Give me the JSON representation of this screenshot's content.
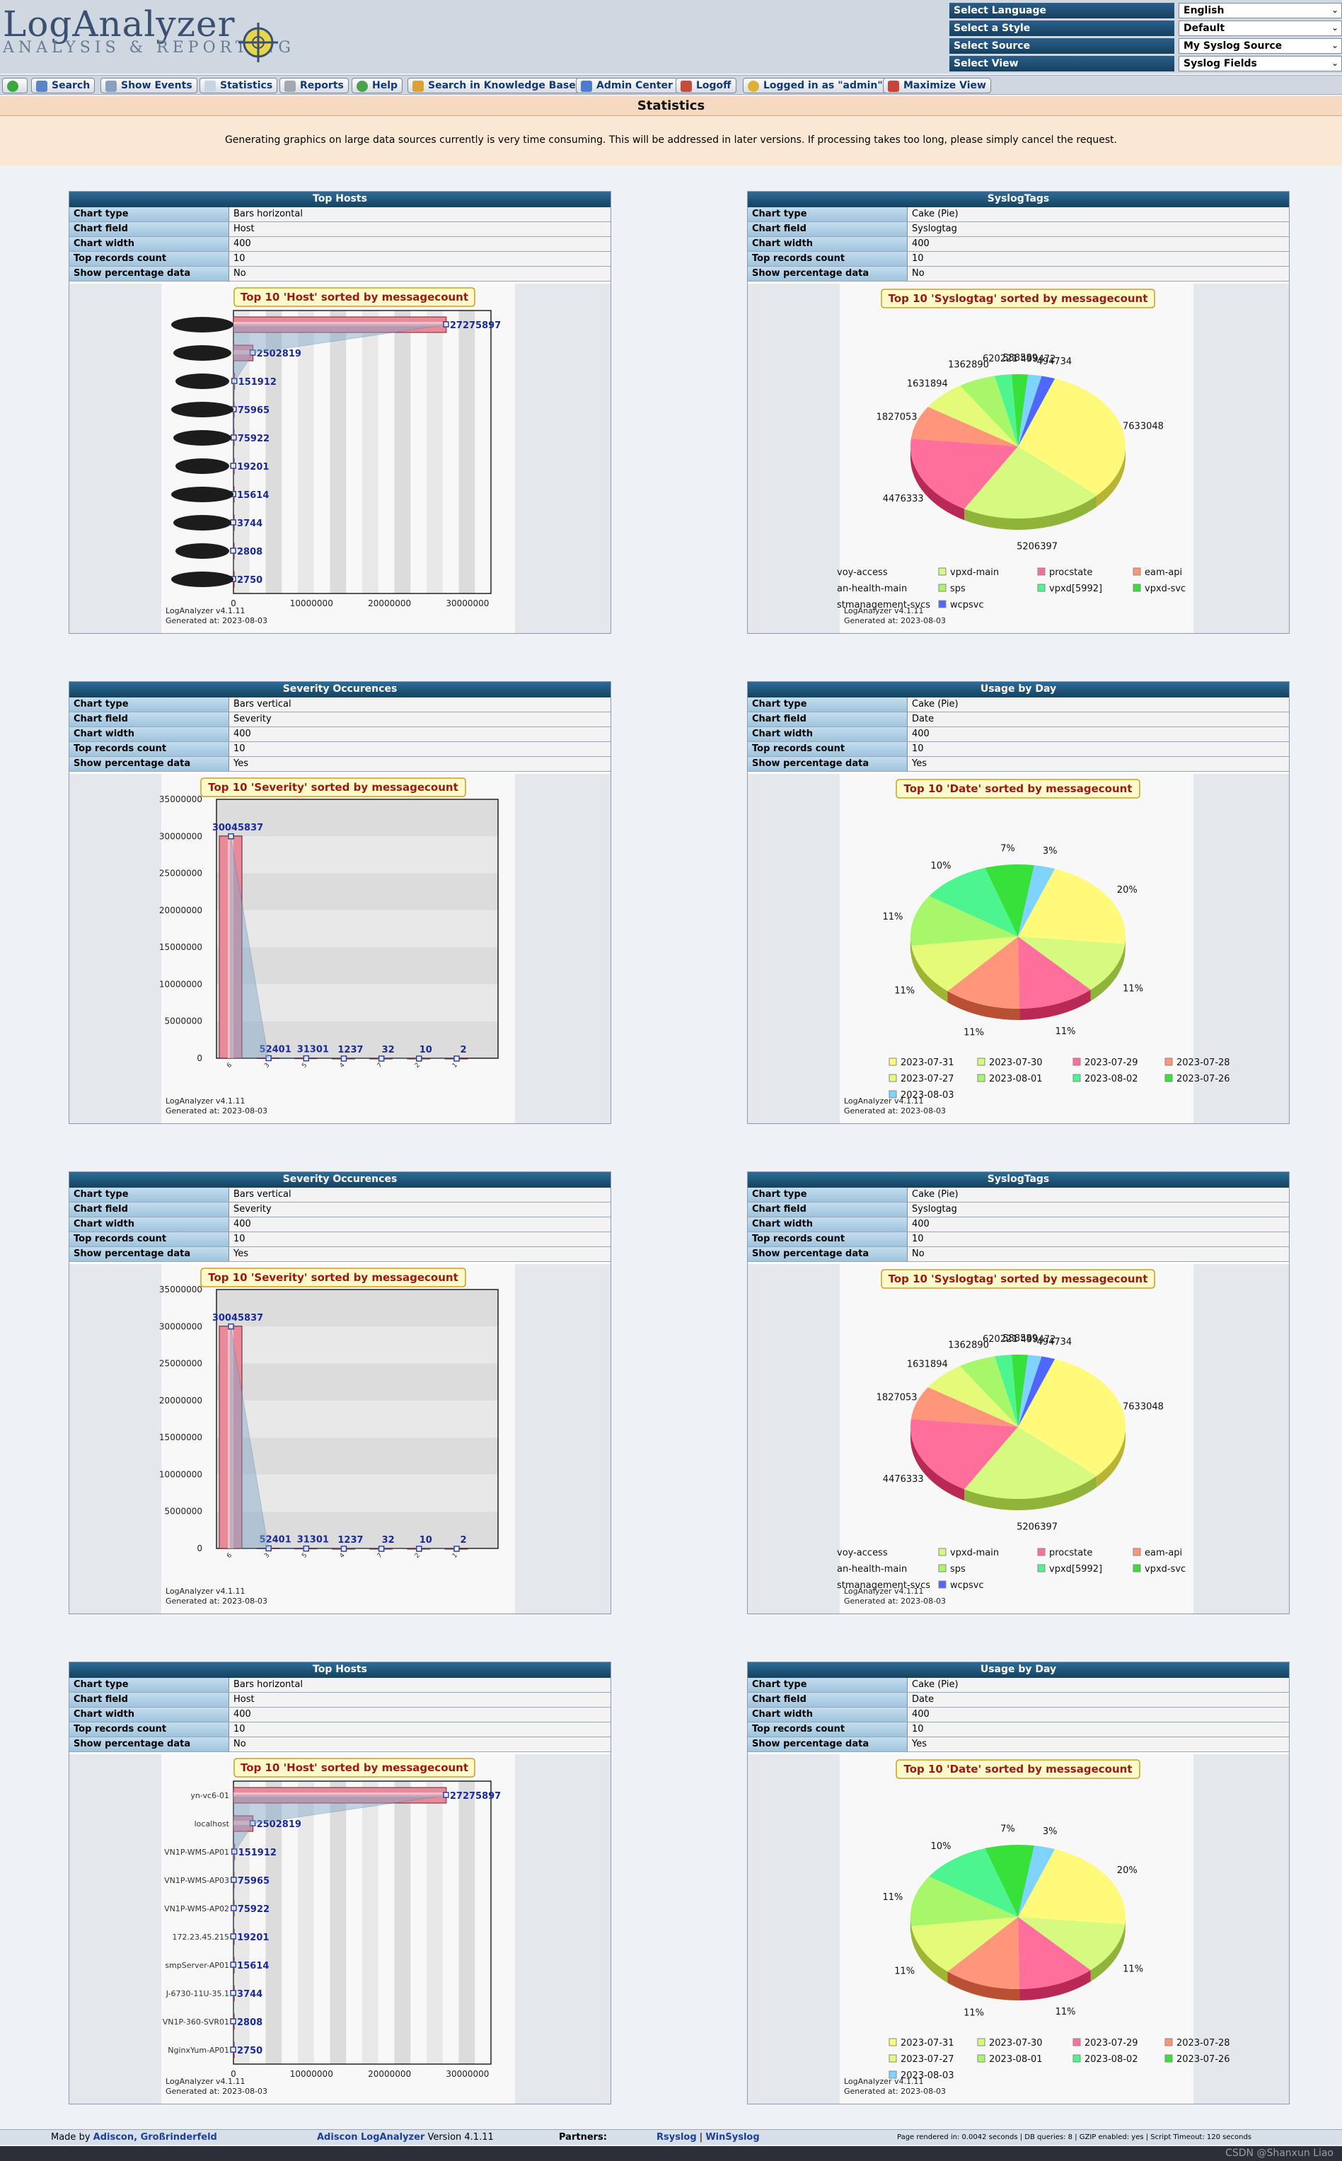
{
  "app": {
    "logo_title": "LogAnalyzer",
    "logo_subtitle": "ANALYSIS & REPORTING"
  },
  "selectors": [
    {
      "label": "Select Language",
      "value": "English"
    },
    {
      "label": "Select a Style",
      "value": "Default"
    },
    {
      "label": "Select Source",
      "value": "My Syslog Source"
    },
    {
      "label": "Select View",
      "value": "Syslog Fields"
    }
  ],
  "menu": [
    {
      "label": "",
      "icon": "home-icon"
    },
    {
      "label": "Search",
      "icon": "search-icon"
    },
    {
      "label": "Show Events",
      "icon": "events-icon"
    },
    {
      "label": "Statistics",
      "icon": "statistics-icon"
    },
    {
      "label": "Reports",
      "icon": "reports-icon"
    },
    {
      "label": "Help",
      "icon": "help-icon"
    },
    {
      "label": "Search in Knowledge Base",
      "icon": "knowledge-icon"
    },
    {
      "label": "Admin Center",
      "icon": "admin-icon"
    },
    {
      "label": "Logoff",
      "icon": "logoff-icon"
    },
    {
      "label": "Logged in as \"admin\"",
      "icon": "user-icon"
    },
    {
      "label": "Maximize View",
      "icon": "maximize-icon"
    }
  ],
  "page": {
    "title": "Statistics",
    "notice": "Generating graphics on large data sources currently is very time consuming. This will be addressed in later versions. If processing takes too long, please simply cancel the request."
  },
  "field_labels": [
    "Chart type",
    "Chart field",
    "Chart width",
    "Top records count",
    "Show percentage data"
  ],
  "panels": [
    {
      "title": "Top Hosts",
      "fields": [
        "Bars horizontal",
        "Host",
        "400",
        "10",
        "No"
      ],
      "chart": 0
    },
    {
      "title": "SyslogTags",
      "fields": [
        "Cake (Pie)",
        "Syslogtag",
        "400",
        "10",
        "No"
      ],
      "chart": 1
    },
    {
      "title": "Severity Occurences",
      "fields": [
        "Bars vertical",
        "Severity",
        "400",
        "10",
        "Yes"
      ],
      "chart": 2
    },
    {
      "title": "Usage by Day",
      "fields": [
        "Cake (Pie)",
        "Date",
        "400",
        "10",
        "Yes"
      ],
      "chart": 3
    },
    {
      "title": "Severity Occurences",
      "fields": [
        "Bars vertical",
        "Severity",
        "400",
        "10",
        "Yes"
      ],
      "chart": 2
    },
    {
      "title": "SyslogTags",
      "fields": [
        "Cake (Pie)",
        "Syslogtag",
        "400",
        "10",
        "No"
      ],
      "chart": 1
    },
    {
      "title": "Top Hosts",
      "fields": [
        "Bars horizontal",
        "Host",
        "400",
        "10",
        "No"
      ],
      "chart": 4
    },
    {
      "title": "Usage by Day",
      "fields": [
        "Cake (Pie)",
        "Date",
        "400",
        "10",
        "Yes"
      ],
      "chart": 3
    }
  ],
  "chart_data": [
    {
      "type": "bar",
      "orientation": "horizontal",
      "title": "Top 10 'Host' sorted by messagecount",
      "categories": [
        "",
        "",
        "",
        "",
        "",
        "",
        "",
        "",
        "",
        ""
      ],
      "values": [
        27275897,
        2502819,
        151912,
        75965,
        75922,
        19201,
        15614,
        3744,
        2808,
        2750
      ],
      "value_labels": [
        "27275897",
        "2502819",
        "151912",
        "75965",
        "75922",
        "19201",
        "15614",
        "3744",
        "2808",
        "2750"
      ],
      "xticks": [
        "0",
        "10000000",
        "20000000",
        "30000000"
      ],
      "xlim": [
        0,
        33000000
      ],
      "footer1": "LogAnalyzer v4.1.11",
      "footer2": "Generated at: 2023-08-03"
    },
    {
      "type": "pie",
      "title": "Top 10 'Syslogtag' sorted by messagecount",
      "series": [
        {
          "name": "voy-access",
          "value": 7633048,
          "label": "7633048",
          "color": "#fffa7a"
        },
        {
          "name": "vpxd-main",
          "value": 5206397,
          "label": "5206397",
          "color": "#d6f97f"
        },
        {
          "name": "procstate",
          "value": 4476333,
          "label": "4476333",
          "color": "#ff6f9c"
        },
        {
          "name": "eam-api",
          "value": 1827053,
          "label": "1827053",
          "color": "#ff967a"
        },
        {
          "name": "an-health-main",
          "value": 1631894,
          "label": "1631894",
          "color": "#e6fa7a"
        },
        {
          "name": "sps",
          "value": 1362890,
          "label": "1362890",
          "color": "#a8f76a"
        },
        {
          "name": "vpxd[5992]",
          "value": 620221,
          "label": "620221",
          "color": "#4df58e"
        },
        {
          "name": "vpxd-svc",
          "value": 588589,
          "label": "588589",
          "color": "#38e03a"
        },
        {
          "name": "stmanagement-svcs",
          "value": 499472,
          "label": "499472",
          "color": "#7fd3ff"
        },
        {
          "name": "wcpsvc",
          "value": 494734,
          "label": "494734",
          "color": "#4f66ff"
        }
      ],
      "footer1": "LogAnalyzer v4.1.11",
      "footer2": "Generated at: 2023-08-03"
    },
    {
      "type": "bar",
      "orientation": "vertical",
      "title": "Top 10 'Severity' sorted by messagecount",
      "categories": [
        "6",
        "3",
        "5",
        "4",
        "7",
        "2",
        "1"
      ],
      "values": [
        30045837,
        52401,
        31301,
        1237,
        32,
        10,
        2
      ],
      "value_labels": [
        "30045837",
        "52401",
        "31301",
        "1237",
        "32",
        "10",
        "2"
      ],
      "yticks": [
        "0",
        "5000000",
        "10000000",
        "15000000",
        "20000000",
        "25000000",
        "30000000",
        "35000000"
      ],
      "ylim": [
        0,
        35000000
      ],
      "footer1": "LogAnalyzer v4.1.11",
      "footer2": "Generated at: 2023-08-03"
    },
    {
      "type": "pie",
      "title": "Top 10 'Date' sorted by messagecount",
      "series": [
        {
          "name": "2023-07-31",
          "value": 20,
          "label": "20%",
          "color": "#fffa7a"
        },
        {
          "name": "2023-07-30",
          "value": 11,
          "label": "11%",
          "color": "#d6f97f"
        },
        {
          "name": "2023-07-29",
          "value": 11,
          "label": "11%",
          "color": "#ff6f9c"
        },
        {
          "name": "2023-07-28",
          "value": 11,
          "label": "11%",
          "color": "#ff967a"
        },
        {
          "name": "2023-07-27",
          "value": 11,
          "label": "11%",
          "color": "#e6fa7a"
        },
        {
          "name": "2023-08-01",
          "value": 11,
          "label": "11%",
          "color": "#a8f76a"
        },
        {
          "name": "2023-08-02",
          "value": 10,
          "label": "10%",
          "color": "#4df58e"
        },
        {
          "name": "2023-07-26",
          "value": 7,
          "label": "7%",
          "color": "#38e03a"
        },
        {
          "name": "2023-08-03",
          "value": 3,
          "label": "3%",
          "color": "#7fd3ff"
        }
      ],
      "footer1": "LogAnalyzer v4.1.11",
      "footer2": "Generated at: 2023-08-03"
    },
    {
      "type": "bar",
      "orientation": "horizontal",
      "title": "Top 10 'Host' sorted by messagecount",
      "categories": [
        "yn-vc6-01",
        "localhost",
        "VN1P-WMS-AP01",
        "VN1P-WMS-AP03",
        "VN1P-WMS-AP02",
        "172.23.45.215",
        "smpServer-AP01",
        "J-6730-11U-35.1",
        "VN1P-360-SVR01",
        "NginxYum-AP01"
      ],
      "values": [
        27275897,
        2502819,
        151912,
        75965,
        75922,
        19201,
        15614,
        3744,
        2808,
        2750
      ],
      "value_labels": [
        "27275897",
        "2502819",
        "151912",
        "75965",
        "75922",
        "19201",
        "15614",
        "3744",
        "2808",
        "2750"
      ],
      "xticks": [
        "0",
        "10000000",
        "20000000",
        "30000000"
      ],
      "xlim": [
        0,
        33000000
      ],
      "footer1": "LogAnalyzer v4.1.11",
      "footer2": "Generated at: 2023-08-03"
    }
  ],
  "footer": {
    "made_by": "Made by",
    "made_by_link": "Adiscon, Großrinderfeld",
    "product_link": "Adiscon LogAnalyzer",
    "version": "Version 4.1.11",
    "partners_label": "Partners:",
    "partner1": "Rsyslog",
    "sep": "|",
    "partner2": "WinSyslog",
    "render_info": "Page rendered in: 0.0042 seconds | DB queries: 8 | GZIP enabled: yes | Script Timeout: 120 seconds"
  },
  "watermark": "CSDN @Shanxun Liao"
}
